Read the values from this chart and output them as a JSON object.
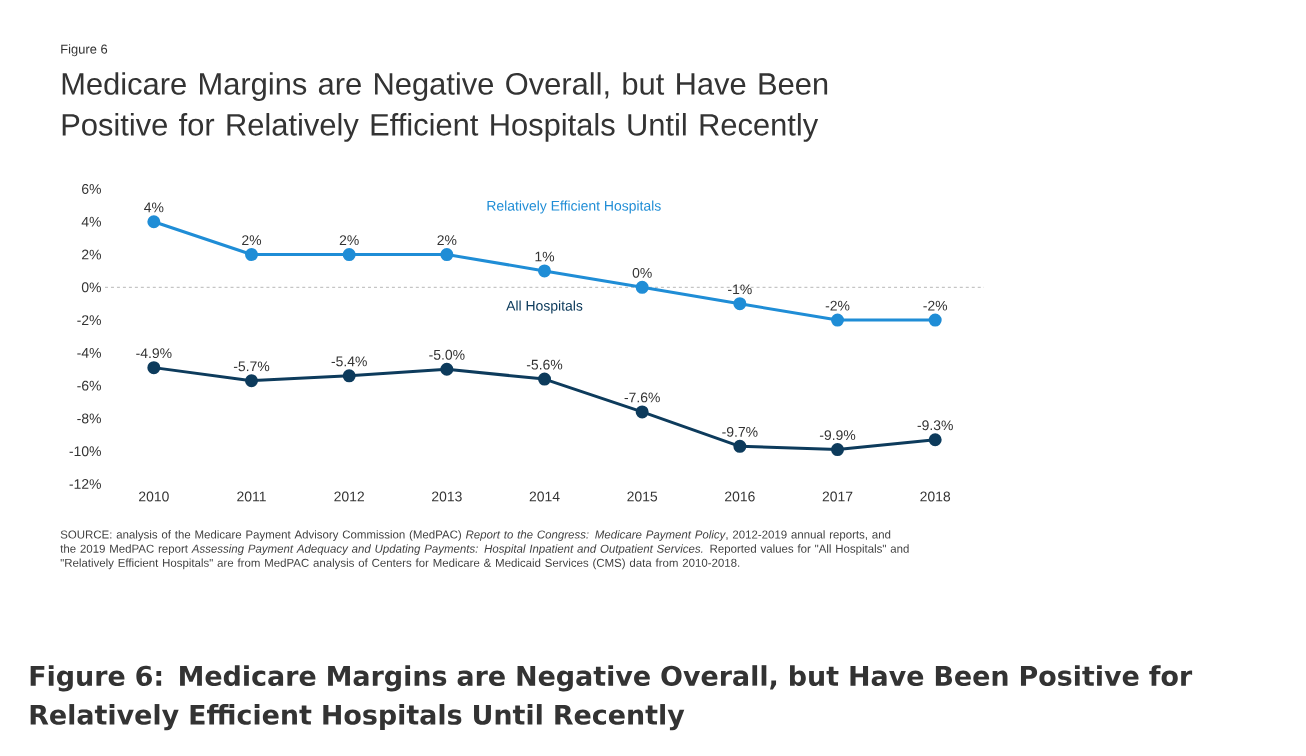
{
  "chart_data": {
    "type": "line",
    "title": "Medicare Margins are Negative Overall, but Have Been Positive for Relatively Efficient Hospitals Until Recently",
    "categories": [
      "2010",
      "2011",
      "2012",
      "2013",
      "2014",
      "2015",
      "2016",
      "2017",
      "2018"
    ],
    "series": [
      {
        "name": "Relatively Efficient Hospitals",
        "color": "#1f8dd6",
        "values": [
          4,
          2,
          2,
          2,
          1,
          0,
          -1,
          -2,
          -2
        ],
        "value_labels": [
          "4%",
          "2%",
          "2%",
          "2%",
          "1%",
          "0%",
          "-1%",
          "-2%",
          "-2%"
        ]
      },
      {
        "name": "All Hospitals",
        "color": "#0d3b5c",
        "values": [
          -4.9,
          -5.7,
          -5.4,
          -5.0,
          -5.6,
          -7.6,
          -9.7,
          -9.9,
          -9.3
        ],
        "value_labels": [
          "-4.9%",
          "-5.7%",
          "-5.4%",
          "-5.0%",
          "-5.6%",
          "-7.6%",
          "-9.7%",
          "-9.9%",
          "-9.3%"
        ]
      }
    ],
    "ylim": [
      -12,
      6
    ],
    "yticks": [
      {
        "value": -12,
        "label": "-12%"
      },
      {
        "value": -10,
        "label": "-10%"
      },
      {
        "value": -8,
        "label": "-8%"
      },
      {
        "value": -6,
        "label": "-6%"
      },
      {
        "value": -4,
        "label": "-4%"
      },
      {
        "value": -2,
        "label": "-2%"
      },
      {
        "value": 0,
        "label": "0%"
      },
      {
        "value": 2,
        "label": "2%"
      },
      {
        "value": 4,
        "label": "4%"
      },
      {
        "value": 6,
        "label": "6%"
      }
    ],
    "ref_lines": [
      {
        "axis": "y",
        "value": 0,
        "color": "#a6a6a6",
        "line_style": "dashed"
      }
    ],
    "marker": "circle",
    "line_style": "solid",
    "annotations": [
      "Figure 6",
      "SOURCE: analysis of the Medicare Payment Advisory Commission (MedPAC) *Report to the Congress: Medicare Payment Policy*, 2012-2019 annual reports, and the 2019 MedPAC report *Assessing Payment Adequacy and Updating Payments: Hospital Inpatient and Outpatient Services.* Reported values for \"All Hospitals\" and \"Relatively Efficient Hospitals\" are from MedPAC analysis of Centers for Medicare & Medicaid Services (CMS) data from 2010-2018.",
      "Figure 6: Medicare Margins are Negative Overall, but Have Been Positive for Relatively Efficient Hospitals Until Recently"
    ]
  }
}
